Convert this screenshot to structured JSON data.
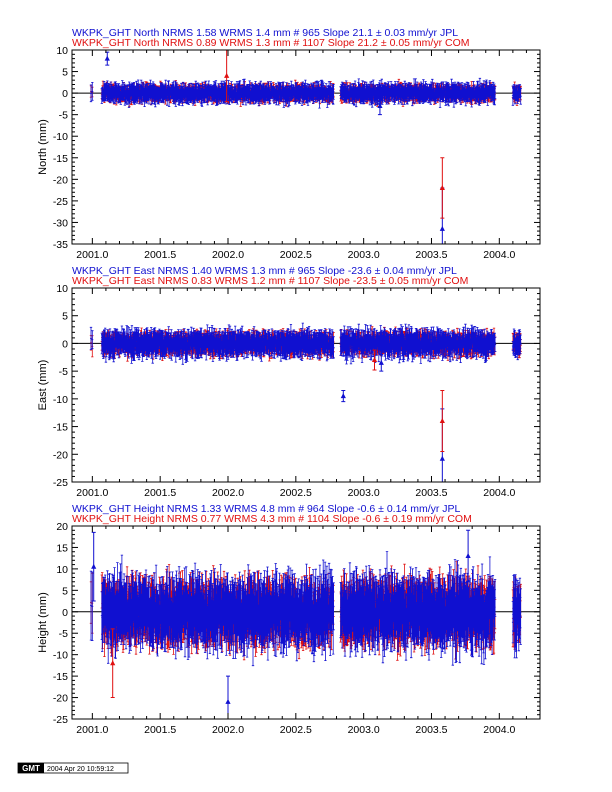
{
  "colors": {
    "jpl": "#1010d0",
    "com": "#e01010",
    "axis": "#000000",
    "zero_line": "#000000"
  },
  "chart_data": [
    {
      "type": "scatter",
      "title_lines": [
        {
          "text": "WKPK_GHT North NRMS 1.58 WRMS  1.4 mm # 965 Slope   21.1 ±  0.03 mm/yr JPL",
          "color": "#1010d0"
        },
        {
          "text": "WKPK_GHT North NRMS 0.89 WRMS  1.3 mm # 1107 Slope   21.2 ±  0.05 mm/yr COM",
          "color": "#e01010"
        }
      ],
      "ylabel": "North (mm)",
      "xlim": [
        2000.85,
        2004.3
      ],
      "ylim": [
        -35,
        10
      ],
      "xticks": [
        2001.0,
        2001.5,
        2002.0,
        2002.5,
        2003.0,
        2003.5,
        2004.0
      ],
      "xtick_labels": [
        "2001.0",
        "2001.5",
        "2002.0",
        "2002.5",
        "2003.0",
        "2003.5",
        "2004.0"
      ],
      "yticks": [
        10,
        5,
        0,
        -5,
        -10,
        -15,
        -20,
        -25,
        -30,
        -35
      ],
      "ytick_labels": [
        "10",
        "5",
        "0",
        "-5",
        "-10",
        "-15",
        "-20",
        "-25",
        "-30",
        "-35"
      ],
      "gen": {
        "amp_jpl": 1.4,
        "amp_com": 1.3,
        "err_jpl": 1.5,
        "err_com": 1.2
      },
      "outliers": [
        {
          "x": 2003.58,
          "y": -31.5,
          "err": 9.5,
          "series": "JPL"
        },
        {
          "x": 2003.58,
          "y": -22.0,
          "err": 7.0,
          "series": "COM"
        },
        {
          "x": 2001.11,
          "y": 8.0,
          "err": 1.5,
          "series": "JPL"
        },
        {
          "x": 2001.99,
          "y": 4.0,
          "err": 6.0,
          "series": "COM"
        },
        {
          "x": 2003.12,
          "y": -3.0,
          "err": 2.0,
          "series": "JPL"
        }
      ]
    },
    {
      "type": "scatter",
      "title_lines": [
        {
          "text": "WKPK_GHT East NRMS 1.40 WRMS  1.3 mm # 965 Slope  -23.6 ±  0.04 mm/yr JPL",
          "color": "#1010d0"
        },
        {
          "text": "WKPK_GHT East NRMS 0.83 WRMS  1.2 mm # 1107 Slope  -23.5 ±  0.05 mm/yr COM",
          "color": "#e01010"
        }
      ],
      "ylabel": "East (mm)",
      "xlim": [
        2000.85,
        2004.3
      ],
      "ylim": [
        -25,
        10
      ],
      "xticks": [
        2001.0,
        2001.5,
        2002.0,
        2002.5,
        2003.0,
        2003.5,
        2004.0
      ],
      "xtick_labels": [
        "2001.0",
        "2001.5",
        "2002.0",
        "2002.5",
        "2003.0",
        "2003.5",
        "2004.0"
      ],
      "yticks": [
        10,
        5,
        0,
        -5,
        -10,
        -15,
        -20,
        -25
      ],
      "ytick_labels": [
        "10",
        "5",
        "0",
        "-5",
        "-10",
        "-15",
        "-20",
        "-25"
      ],
      "gen": {
        "amp_jpl": 1.5,
        "amp_com": 1.3,
        "err_jpl": 1.6,
        "err_com": 1.3
      },
      "outliers": [
        {
          "x": 2003.58,
          "y": -20.8,
          "err": 9.0,
          "series": "JPL"
        },
        {
          "x": 2003.58,
          "y": -14.0,
          "err": 5.5,
          "series": "COM"
        },
        {
          "x": 2002.85,
          "y": -9.5,
          "err": 1.0,
          "series": "JPL"
        },
        {
          "x": 2003.13,
          "y": -3.5,
          "err": 1.5,
          "series": "JPL"
        },
        {
          "x": 2003.08,
          "y": -3.0,
          "err": 1.8,
          "series": "COM"
        }
      ]
    },
    {
      "type": "scatter",
      "title_lines": [
        {
          "text": "WKPK_GHT Height NRMS 1.33 WRMS  4.8 mm # 964 Slope   -0.6 ±  0.14 mm/yr JPL",
          "color": "#1010d0"
        },
        {
          "text": "WKPK_GHT Height NRMS 0.77 WRMS  4.3 mm # 1104 Slope   -0.6 ±  0.19 mm/yr COM",
          "color": "#e01010"
        }
      ],
      "ylabel": "Height (mm)",
      "xlim": [
        2000.85,
        2004.3
      ],
      "ylim": [
        -25,
        20
      ],
      "xticks": [
        2001.0,
        2001.5,
        2002.0,
        2002.5,
        2003.0,
        2003.5,
        2004.0
      ],
      "xtick_labels": [
        "2001.0",
        "2001.5",
        "2002.0",
        "2002.5",
        "2003.0",
        "2003.5",
        "2004.0"
      ],
      "yticks": [
        20,
        15,
        10,
        5,
        0,
        -5,
        -10,
        -15,
        -20,
        -25
      ],
      "ytick_labels": [
        "20",
        "15",
        "10",
        "5",
        "0",
        "-5",
        "-10",
        "-15",
        "-20",
        "-25"
      ],
      "gen": {
        "amp_jpl": 5.0,
        "amp_com": 4.5,
        "err_jpl": 5.5,
        "err_com": 5.0
      },
      "outliers": [
        {
          "x": 2001.01,
          "y": 10.5,
          "err": 8.0,
          "series": "JPL"
        },
        {
          "x": 2001.15,
          "y": -12.0,
          "err": 8.0,
          "series": "COM"
        },
        {
          "x": 2002.0,
          "y": -21.0,
          "err": 6.0,
          "series": "JPL"
        },
        {
          "x": 2003.77,
          "y": 13.0,
          "err": 6.0,
          "series": "JPL"
        }
      ]
    }
  ],
  "gmt_stamp": {
    "logo": "GMT",
    "timestamp": "2004 Apr 20 10:59:12"
  }
}
